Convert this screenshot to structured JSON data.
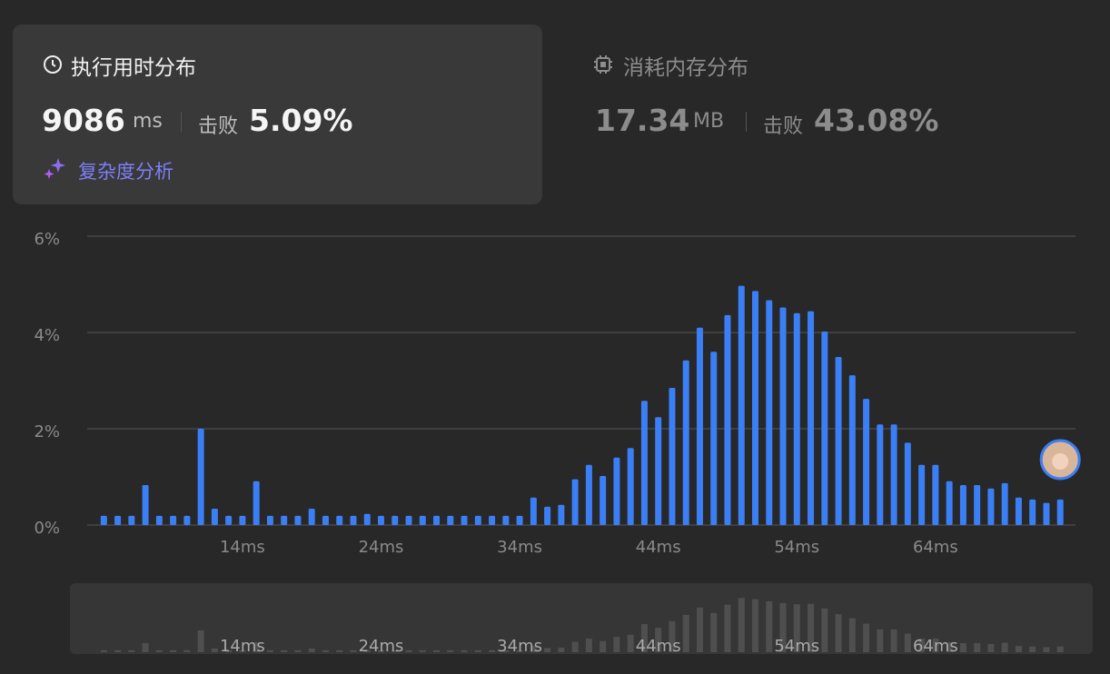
{
  "runtime": {
    "title": "执行用时分布",
    "value": "9086",
    "unit": "ms",
    "beats_label": "击败",
    "beats": "5.09%",
    "analysis": "复杂度分析"
  },
  "memory": {
    "title": "消耗内存分布",
    "value": "17.34",
    "unit": "MB",
    "beats_label": "击败",
    "beats": "43.08%"
  },
  "chart_data": {
    "type": "bar",
    "color": "#3a7ff6",
    "x": [
      4,
      5,
      6,
      7,
      8,
      9,
      10,
      11,
      12,
      13,
      14,
      15,
      16,
      17,
      18,
      19,
      20,
      21,
      22,
      23,
      24,
      25,
      26,
      27,
      28,
      29,
      30,
      31,
      32,
      33,
      34,
      35,
      36,
      37,
      38,
      39,
      40,
      41,
      42,
      43,
      44,
      45,
      46,
      47,
      48,
      49,
      50,
      51,
      52,
      53,
      54,
      55,
      56,
      57,
      58,
      59,
      60,
      61,
      62,
      63,
      64,
      65,
      66,
      67,
      68,
      69,
      70,
      71,
      72,
      73
    ],
    "values": [
      0.19,
      0.19,
      0.19,
      0.83,
      0.19,
      0.19,
      0.19,
      2.0,
      0.34,
      0.19,
      0.19,
      0.91,
      0.19,
      0.19,
      0.19,
      0.34,
      0.19,
      0.19,
      0.19,
      0.23,
      0.19,
      0.19,
      0.19,
      0.19,
      0.19,
      0.19,
      0.19,
      0.19,
      0.19,
      0.19,
      0.19,
      0.57,
      0.38,
      0.42,
      0.95,
      1.25,
      1.02,
      1.4,
      1.6,
      2.58,
      2.24,
      2.85,
      3.42,
      4.1,
      3.6,
      4.36,
      4.97,
      4.86,
      4.67,
      4.52,
      4.4,
      4.44,
      4.02,
      3.49,
      3.11,
      2.62,
      2.09,
      2.09,
      1.71,
      1.25,
      1.25,
      0.91,
      0.83,
      0.83,
      0.76,
      0.87,
      0.57,
      0.53,
      0.46,
      0.53
    ],
    "xlim": [
      2.8,
      74.1
    ],
    "xticks": [
      {
        "value": 14,
        "label": "14ms"
      },
      {
        "value": 24,
        "label": "24ms"
      },
      {
        "value": 34,
        "label": "34ms"
      },
      {
        "value": 44,
        "label": "44ms"
      },
      {
        "value": 54,
        "label": "54ms"
      },
      {
        "value": 64,
        "label": "64ms"
      }
    ],
    "ylim": [
      0,
      6
    ],
    "yticks": [
      {
        "value": 0,
        "label": "0%"
      },
      {
        "value": 2,
        "label": "2%"
      },
      {
        "value": 4,
        "label": "4%"
      },
      {
        "value": 6,
        "label": "6%"
      }
    ],
    "grid": true
  }
}
